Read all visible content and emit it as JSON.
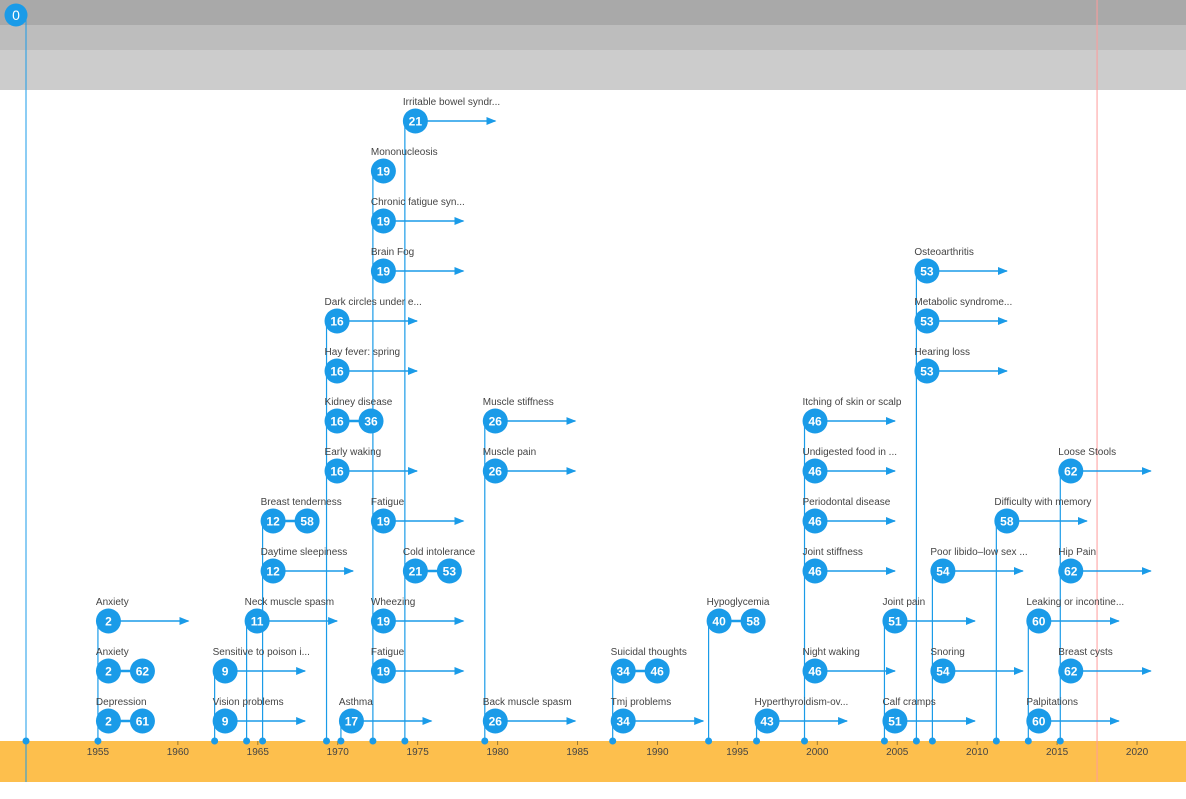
{
  "colors": {
    "accent": "#1a9be8",
    "axis_band": "#fdbf4d",
    "cursor_line": "#ff9b9b"
  },
  "scrubber": {
    "label": "0"
  },
  "chart_data": {
    "type": "timeline",
    "x_axis": {
      "min_year": 1950.5,
      "max_year": 2021.5,
      "ticks": [
        1955,
        1960,
        1965,
        1970,
        1975,
        1980,
        1985,
        1990,
        1995,
        2000,
        2005,
        2010,
        2015,
        2020
      ]
    },
    "cursor_year": 2017.5,
    "events": [
      {
        "label": "Depression",
        "year": 1955,
        "age": "2",
        "row": 1,
        "end_age": "61"
      },
      {
        "label": "Anxiety",
        "year": 1955,
        "age": "2",
        "row": 2,
        "end_age": "62"
      },
      {
        "label": "Anxiety",
        "year": 1955,
        "age": "2",
        "row": 3,
        "arrow": true
      },
      {
        "label": "Vision problems",
        "year": 1962.3,
        "age": "9",
        "row": 1,
        "arrow": true
      },
      {
        "label": "Sensitive to poison i...",
        "year": 1962.3,
        "age": "9",
        "row": 2,
        "arrow": true
      },
      {
        "label": "Neck muscle spasm",
        "year": 1964.3,
        "age": "11",
        "row": 3,
        "arrow": true
      },
      {
        "label": "Daytime sleepiness",
        "year": 1965.3,
        "age": "12",
        "row": 4,
        "arrow": true
      },
      {
        "label": "Breast tenderness",
        "year": 1965.3,
        "age": "12",
        "row": 5,
        "end_age": "58"
      },
      {
        "label": "Asthma",
        "year": 1970.2,
        "age": "17",
        "row": 1,
        "arrow": true
      },
      {
        "label": "Early waking",
        "year": 1969.3,
        "age": "16",
        "row": 6,
        "arrow": true
      },
      {
        "label": "Kidney disease",
        "year": 1969.3,
        "age": "16",
        "row": 7,
        "end_age": "36"
      },
      {
        "label": "Hay fever: spring",
        "year": 1969.3,
        "age": "16",
        "row": 8,
        "arrow": true
      },
      {
        "label": "Dark circles under e...",
        "year": 1969.3,
        "age": "16",
        "row": 9,
        "arrow": true
      },
      {
        "label": "Fatigue",
        "year": 1972.2,
        "age": "19",
        "row": 2,
        "arrow": true
      },
      {
        "label": "Wheezing",
        "year": 1972.2,
        "age": "19",
        "row": 3,
        "arrow": true
      },
      {
        "label": "Fatigue",
        "year": 1972.2,
        "age": "19",
        "row": 5,
        "arrow": true
      },
      {
        "label": "Brain Fog",
        "year": 1972.2,
        "age": "19",
        "row": 10,
        "arrow": true
      },
      {
        "label": "Chronic fatigue syn...",
        "year": 1972.2,
        "age": "19",
        "row": 11,
        "arrow": true
      },
      {
        "label": "Mononucleosis",
        "year": 1972.2,
        "age": "19",
        "row": 12
      },
      {
        "label": "Cold intolerance",
        "year": 1974.2,
        "age": "21",
        "row": 4,
        "end_age": "53"
      },
      {
        "label": "Irritable bowel syndr...",
        "year": 1974.2,
        "age": "21",
        "row": 13,
        "arrow": true
      },
      {
        "label": "Back muscle spasm",
        "year": 1979.2,
        "age": "26",
        "row": 1,
        "arrow": true
      },
      {
        "label": "Muscle pain",
        "year": 1979.2,
        "age": "26",
        "row": 6,
        "arrow": true
      },
      {
        "label": "Muscle stiffness",
        "year": 1979.2,
        "age": "26",
        "row": 7,
        "arrow": true
      },
      {
        "label": "Tmj problems",
        "year": 1987.2,
        "age": "34",
        "row": 1,
        "arrow": true
      },
      {
        "label": "Suicidal thoughts",
        "year": 1987.2,
        "age": "34",
        "row": 2,
        "end_age": "46"
      },
      {
        "label": "Hypoglycemia",
        "year": 1993.2,
        "age": "40",
        "row": 3,
        "end_age": "58"
      },
      {
        "label": "Hyperthyroidism-ov...",
        "year": 1996.2,
        "age": "43",
        "row": 1,
        "arrow": true
      },
      {
        "label": "Night waking",
        "year": 1999.2,
        "age": "46",
        "row": 2,
        "arrow": true
      },
      {
        "label": "Joint stiffness",
        "year": 1999.2,
        "age": "46",
        "row": 4,
        "arrow": true
      },
      {
        "label": "Periodontal disease",
        "year": 1999.2,
        "age": "46",
        "row": 5,
        "arrow": true
      },
      {
        "label": "Undigested food in ...",
        "year": 1999.2,
        "age": "46",
        "row": 6,
        "arrow": true
      },
      {
        "label": "Itching of skin or scalp",
        "year": 1999.2,
        "age": "46",
        "row": 7,
        "arrow": true
      },
      {
        "label": "Calf cramps",
        "year": 2004.2,
        "age": "51",
        "row": 1,
        "arrow": true
      },
      {
        "label": "Joint pain",
        "year": 2004.2,
        "age": "51",
        "row": 3,
        "arrow": true
      },
      {
        "label": "Hearing loss",
        "year": 2006.2,
        "age": "53",
        "row": 8,
        "arrow": true
      },
      {
        "label": "Metabolic syndrome...",
        "year": 2006.2,
        "age": "53",
        "row": 9,
        "arrow": true
      },
      {
        "label": "Osteoarthritis",
        "year": 2006.2,
        "age": "53",
        "row": 10,
        "arrow": true
      },
      {
        "label": "Snoring",
        "year": 2007.2,
        "age": "54",
        "row": 2,
        "arrow": true
      },
      {
        "label": "Poor libido–low sex ...",
        "year": 2007.2,
        "age": "54",
        "row": 4,
        "arrow": true
      },
      {
        "label": "Difficulty with memory",
        "year": 2011.2,
        "age": "58",
        "row": 5,
        "arrow": true
      },
      {
        "label": "Palpitations",
        "year": 2013.2,
        "age": "60",
        "row": 1,
        "arrow": true
      },
      {
        "label": "Leaking or incontine...",
        "year": 2013.2,
        "age": "60",
        "row": 3,
        "arrow": true
      },
      {
        "label": "Breast cysts",
        "year": 2015.2,
        "age": "62",
        "row": 2,
        "arrow": true
      },
      {
        "label": "Hip Pain",
        "year": 2015.2,
        "age": "62",
        "row": 4,
        "arrow": true
      },
      {
        "label": "Loose Stools",
        "year": 2015.2,
        "age": "62",
        "row": 6,
        "arrow": true
      }
    ]
  }
}
